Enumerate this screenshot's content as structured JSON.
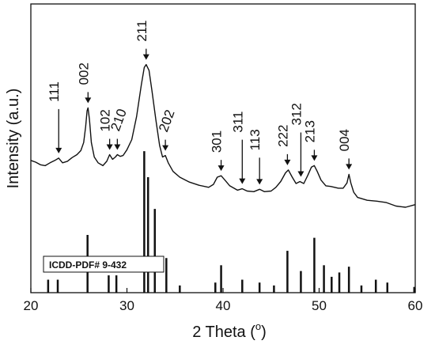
{
  "chart_data": {
    "type": "line",
    "title": "",
    "xlabel": "2 Theta (",
    "xlabel_unit": "o",
    "xlabel_close": ")",
    "ylabel": "Intensity (a.u.)",
    "xlim": [
      20,
      60
    ],
    "ylim": [
      0,
      1
    ],
    "x_ticks": [
      20,
      30,
      40,
      50,
      60
    ],
    "grid": false,
    "series": [
      {
        "points": [
          [
            20.0,
            0.458
          ],
          [
            20.5,
            0.452
          ],
          [
            21.0,
            0.443
          ],
          [
            21.5,
            0.44
          ],
          [
            22.0,
            0.45
          ],
          [
            22.5,
            0.458
          ],
          [
            22.9,
            0.466
          ],
          [
            23.3,
            0.45
          ],
          [
            23.8,
            0.455
          ],
          [
            24.3,
            0.468
          ],
          [
            24.8,
            0.478
          ],
          [
            25.2,
            0.492
          ],
          [
            25.5,
            0.52
          ],
          [
            25.7,
            0.575
          ],
          [
            25.85,
            0.63
          ],
          [
            25.95,
            0.64
          ],
          [
            26.1,
            0.6
          ],
          [
            26.3,
            0.52
          ],
          [
            26.6,
            0.47
          ],
          [
            27.0,
            0.45
          ],
          [
            27.5,
            0.44
          ],
          [
            27.9,
            0.455
          ],
          [
            28.2,
            0.478
          ],
          [
            28.5,
            0.462
          ],
          [
            28.8,
            0.47
          ],
          [
            29.0,
            0.478
          ],
          [
            29.3,
            0.472
          ],
          [
            29.6,
            0.475
          ],
          [
            30.0,
            0.495
          ],
          [
            30.5,
            0.53
          ],
          [
            31.0,
            0.61
          ],
          [
            31.5,
            0.72
          ],
          [
            31.8,
            0.78
          ],
          [
            32.0,
            0.79
          ],
          [
            32.3,
            0.77
          ],
          [
            32.6,
            0.7
          ],
          [
            33.0,
            0.6
          ],
          [
            33.4,
            0.51
          ],
          [
            33.7,
            0.47
          ],
          [
            34.0,
            0.475
          ],
          [
            34.3,
            0.45
          ],
          [
            34.8,
            0.42
          ],
          [
            35.5,
            0.4
          ],
          [
            36.5,
            0.383
          ],
          [
            37.5,
            0.372
          ],
          [
            38.5,
            0.365
          ],
          [
            39.0,
            0.375
          ],
          [
            39.4,
            0.4
          ],
          [
            39.8,
            0.405
          ],
          [
            40.2,
            0.39
          ],
          [
            40.7,
            0.37
          ],
          [
            41.5,
            0.355
          ],
          [
            42.0,
            0.36
          ],
          [
            42.5,
            0.352
          ],
          [
            43.2,
            0.35
          ],
          [
            43.8,
            0.358
          ],
          [
            44.3,
            0.35
          ],
          [
            45.0,
            0.352
          ],
          [
            45.5,
            0.365
          ],
          [
            46.0,
            0.385
          ],
          [
            46.5,
            0.415
          ],
          [
            46.8,
            0.425
          ],
          [
            47.2,
            0.4
          ],
          [
            47.6,
            0.378
          ],
          [
            48.0,
            0.385
          ],
          [
            48.4,
            0.378
          ],
          [
            48.8,
            0.405
          ],
          [
            49.2,
            0.435
          ],
          [
            49.5,
            0.44
          ],
          [
            49.8,
            0.42
          ],
          [
            50.2,
            0.39
          ],
          [
            50.7,
            0.37
          ],
          [
            51.2,
            0.368
          ],
          [
            52.0,
            0.362
          ],
          [
            52.5,
            0.362
          ],
          [
            52.9,
            0.38
          ],
          [
            53.1,
            0.41
          ],
          [
            53.3,
            0.38
          ],
          [
            53.6,
            0.348
          ],
          [
            54.0,
            0.33
          ],
          [
            55.0,
            0.32
          ],
          [
            56.0,
            0.317
          ],
          [
            57.0,
            0.312
          ],
          [
            58.0,
            0.3
          ],
          [
            59.0,
            0.296
          ],
          [
            60.0,
            0.305
          ]
        ]
      }
    ],
    "reference_pattern": {
      "label": "ICDD-PDF# 9-432",
      "bars": [
        [
          21.8,
          0.045
        ],
        [
          22.8,
          0.045
        ],
        [
          25.9,
          0.2
        ],
        [
          28.1,
          0.06
        ],
        [
          28.9,
          0.06
        ],
        [
          31.8,
          0.49
        ],
        [
          32.2,
          0.4
        ],
        [
          32.9,
          0.29
        ],
        [
          34.1,
          0.12
        ],
        [
          35.5,
          0.025
        ],
        [
          39.2,
          0.035
        ],
        [
          39.8,
          0.095
        ],
        [
          42.0,
          0.045
        ],
        [
          43.8,
          0.035
        ],
        [
          45.3,
          0.025
        ],
        [
          46.7,
          0.145
        ],
        [
          48.1,
          0.075
        ],
        [
          49.5,
          0.19
        ],
        [
          50.5,
          0.095
        ],
        [
          51.3,
          0.055
        ],
        [
          52.1,
          0.07
        ],
        [
          53.1,
          0.09
        ],
        [
          54.4,
          0.025
        ],
        [
          55.9,
          0.045
        ],
        [
          57.1,
          0.035
        ],
        [
          59.9,
          0.02
        ]
      ]
    },
    "annotations": [
      {
        "label": "111",
        "x": 22.9,
        "rotate": -90,
        "arrow_len": "long"
      },
      {
        "label": "002",
        "x": 25.95,
        "rotate": -90,
        "arrow_len": "short"
      },
      {
        "label": "102",
        "x": 28.2,
        "rotate": -90,
        "arrow_len": "short"
      },
      {
        "label": "210",
        "x": 29.0,
        "rotate": -70,
        "arrow_len": "short"
      },
      {
        "label": "211",
        "x": 32.0,
        "rotate": -90,
        "arrow_len": "short"
      },
      {
        "label": "202",
        "x": 34.0,
        "rotate": -70,
        "arrow_len": "short"
      },
      {
        "label": "301",
        "x": 39.8,
        "rotate": -90,
        "arrow_len": "short"
      },
      {
        "label": "311",
        "x": 42.0,
        "rotate": -90,
        "arrow_len": "long"
      },
      {
        "label": "113",
        "x": 43.8,
        "rotate": -90,
        "arrow_len": "medium"
      },
      {
        "label": "222",
        "x": 46.7,
        "rotate": -90,
        "arrow_len": "short"
      },
      {
        "label": "312",
        "x": 48.1,
        "rotate": -90,
        "arrow_len": "long"
      },
      {
        "label": "213",
        "x": 49.5,
        "rotate": -90,
        "arrow_len": "short"
      },
      {
        "label": "004",
        "x": 53.1,
        "rotate": -90,
        "arrow_len": "short"
      }
    ],
    "colors": {
      "line": "#111111",
      "axis": "#111111"
    }
  }
}
